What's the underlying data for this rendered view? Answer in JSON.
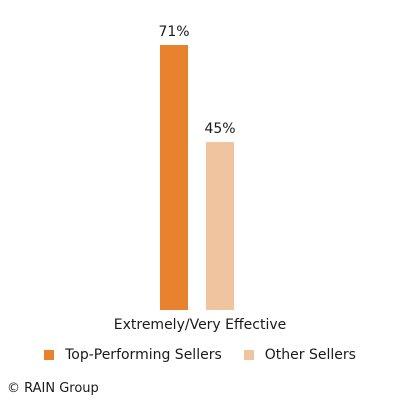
{
  "chart_data": {
    "type": "bar",
    "categories": [
      "Extremely/Very Effective"
    ],
    "series": [
      {
        "name": "Top-Performing Sellers",
        "values": [
          71
        ],
        "label": "71%",
        "color": "#E8822F"
      },
      {
        "name": "Other Sellers",
        "values": [
          45
        ],
        "label": "45%",
        "color": "#F0C49F"
      }
    ],
    "ylim": [
      0,
      71
    ],
    "unit": "%",
    "grid": false,
    "legend_position": "bottom"
  },
  "footer": {
    "copyright": "© RAIN Group"
  }
}
